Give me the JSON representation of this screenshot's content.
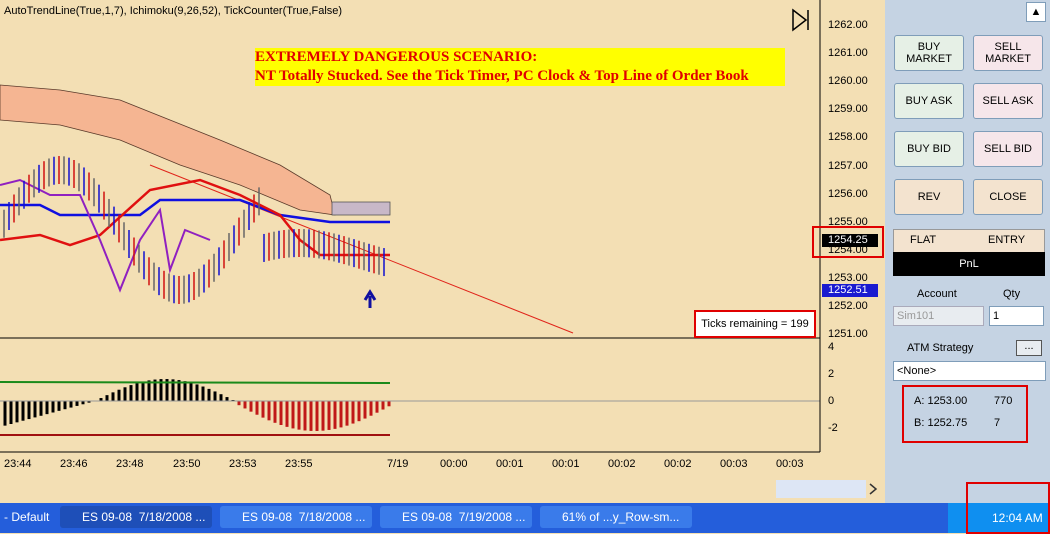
{
  "header": {
    "indicators": "AutoTrendLine(True,1,7), Ichimoku(9,26,52), TickCounter(True,False)"
  },
  "warning": {
    "line1": "EXTREMELY DANGEROUS SCENARIO:",
    "line2": "NT Totally Stucked. See the Tick Timer, PC Clock & Top Line of Order Book"
  },
  "ticks_remaining": "Ticks remaining = 199",
  "price_axis": [
    "1262.00",
    "1261.00",
    "1260.00",
    "1259.00",
    "1258.00",
    "1257.00",
    "1256.00",
    "1255.00",
    "1254.00",
    "1253.00",
    "1252.00",
    "1251.00"
  ],
  "price_markers": {
    "last": "1254.25",
    "bid": "1252.51"
  },
  "oscillator_axis": [
    "4",
    "2",
    "0",
    "-2"
  ],
  "time_axis": [
    "23:44",
    "23:46",
    "23:48",
    "23:50",
    "23:53",
    "23:55",
    "7/19",
    "00:00",
    "00:01",
    "00:01",
    "00:02",
    "00:02",
    "00:03",
    "00:03"
  ],
  "buttons": {
    "buy_market": "BUY MARKET",
    "sell_market": "SELL MARKET",
    "buy_ask": "BUY ASK",
    "sell_ask": "SELL ASK",
    "buy_bid": "BUY BID",
    "sell_bid": "SELL BID",
    "rev": "REV",
    "close": "CLOSE"
  },
  "position": {
    "flat": "FLAT",
    "entry": "ENTRY",
    "pnl": "PnL"
  },
  "account": {
    "label": "Account",
    "value": "Sim101",
    "qty_label": "Qty",
    "qty": "1"
  },
  "atm": {
    "label": "ATM Strategy",
    "button": "...",
    "value": "<None>"
  },
  "order_book": {
    "ask_label": "A: 1253.00",
    "ask_size": "770",
    "bid_label": "B: 1252.75",
    "bid_size": "7"
  },
  "taskbar": {
    "items": [
      "- Default",
      "ES 09-08  7/18/2008 ...",
      "ES 09-08  7/18/2008 ...",
      "ES 09-08  7/19/2008 ...",
      "61% of ...y_Row-sm..."
    ],
    "clock": "12:04 AM"
  }
}
